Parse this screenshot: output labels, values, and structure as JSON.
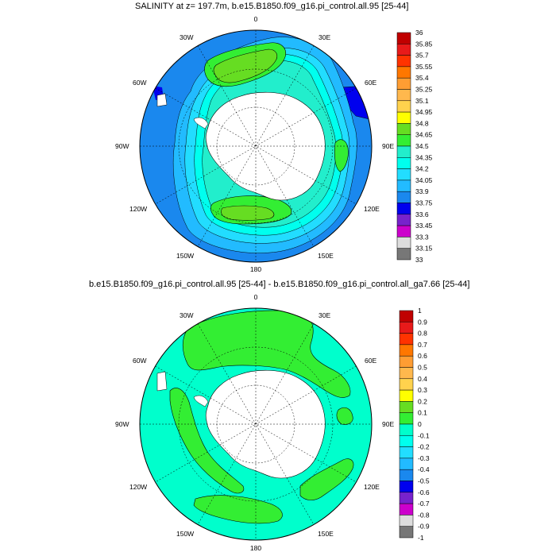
{
  "maps": [
    {
      "title": "SALINITY at z= 197.7m, b.e15.B1850.f09_g16.pi_control.all.95 [25-44]",
      "lon_labels": [
        "0",
        "30E",
        "60E",
        "90E",
        "120E",
        "150E",
        "180",
        "150W",
        "120W",
        "90W",
        "60W",
        "30W"
      ],
      "colorbar": {
        "labels": [
          "36",
          "35.85",
          "35.7",
          "35.55",
          "35.4",
          "35.25",
          "35.1",
          "34.95",
          "34.8",
          "34.65",
          "34.5",
          "34.35",
          "34.2",
          "34.05",
          "33.9",
          "33.75",
          "33.6",
          "33.45",
          "33.3",
          "33.15",
          "33"
        ],
        "colors": [
          "#c00000",
          "#e81a1a",
          "#ff3300",
          "#ff7700",
          "#ff9d33",
          "#ffb84d",
          "#ffd24d",
          "#ffff00",
          "#66dd22",
          "#33ee33",
          "#22eecc",
          "#00ffee",
          "#22ddff",
          "#22bbff",
          "#1a88ee",
          "#0000ee",
          "#7722cc",
          "#cc00cc",
          "#dddddd",
          "#777777"
        ]
      },
      "colors": {
        "ocean": "#1a88ee",
        "mid": "#22bbff",
        "front": "#00ffee",
        "front2": "#22ddff",
        "high": "#66dd22",
        "high2": "#33ee33",
        "low": "#0000ee",
        "land": "#ffffff"
      }
    },
    {
      "title": "b.e15.B1850.f09_g16.pi_control.all.95 [25-44] - b.e15.B1850.f09_g16.pi_control.all_ga7.66 [25-44]",
      "lon_labels": [
        "0",
        "30E",
        "60E",
        "90E",
        "120E",
        "150E",
        "180",
        "150W",
        "120W",
        "90W",
        "60W",
        "30W"
      ],
      "colorbar": {
        "labels": [
          "1",
          "0.9",
          "0.8",
          "0.7",
          "0.6",
          "0.5",
          "0.4",
          "0.3",
          "0.2",
          "0.1",
          "0",
          "-0.1",
          "-0.2",
          "-0.3",
          "-0.4",
          "-0.5",
          "-0.6",
          "-0.7",
          "-0.8",
          "-0.9",
          "-1"
        ],
        "colors": [
          "#c00000",
          "#e81a1a",
          "#ff3300",
          "#ff7700",
          "#ff9d33",
          "#ffb84d",
          "#ffd24d",
          "#ffff00",
          "#66dd22",
          "#33ee33",
          "#00ffcc",
          "#00ffee",
          "#22ddff",
          "#22bbff",
          "#1a88ee",
          "#0000ee",
          "#7722cc",
          "#cc00cc",
          "#dddddd",
          "#777777"
        ]
      },
      "colors": {
        "ocean": "#00ffcc",
        "high2": "#33ee33",
        "land": "#ffffff"
      }
    }
  ]
}
